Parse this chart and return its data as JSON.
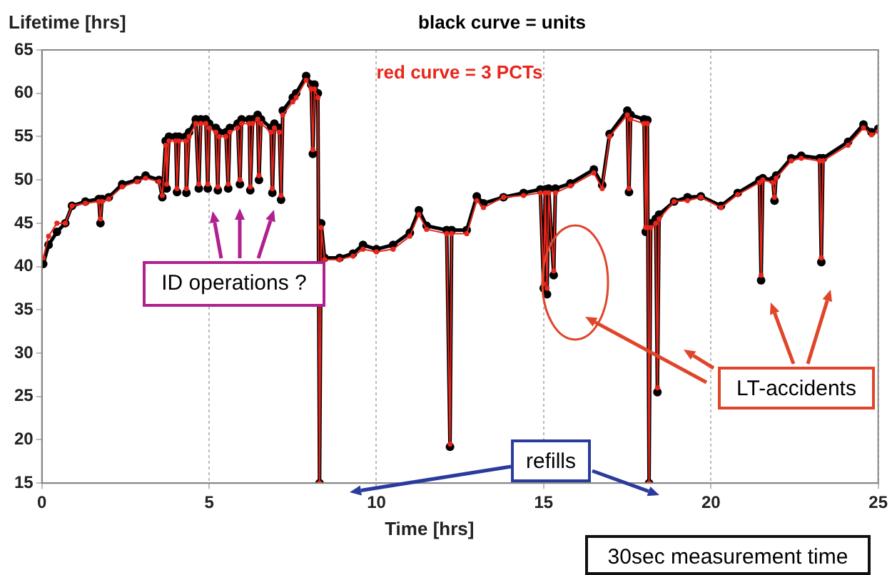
{
  "chart_data": {
    "type": "line",
    "xlabel": "Time [hrs]",
    "ylabel": "Lifetime [hrs]",
    "x": [
      0.04,
      0.2,
      0.45,
      0.7,
      0.9,
      1.3,
      1.7,
      1.75,
      1.8,
      2.0,
      2.4,
      2.85,
      3.1,
      3.5,
      3.6,
      3.7,
      3.73,
      3.8,
      4.0,
      4.04,
      4.1,
      4.3,
      4.32,
      4.4,
      4.6,
      4.69,
      4.75,
      4.9,
      4.96,
      5.0,
      5.2,
      5.26,
      5.3,
      5.5,
      5.57,
      5.62,
      5.85,
      5.92,
      5.97,
      6.2,
      6.23,
      6.3,
      6.45,
      6.49,
      6.55,
      6.85,
      6.89,
      6.95,
      7.1,
      7.15,
      7.2,
      7.5,
      7.6,
      7.9,
      8.05,
      8.1,
      8.15,
      8.25,
      8.3,
      8.35,
      8.45,
      8.9,
      9.3,
      9.6,
      10.0,
      10.5,
      11.0,
      11.27,
      11.5,
      12.1,
      12.2,
      12.25,
      12.7,
      13.0,
      13.2,
      13.8,
      14.4,
      14.9,
      15.0,
      15.05,
      15.1,
      15.15,
      15.3,
      15.35,
      15.8,
      16.5,
      16.75,
      16.97,
      17.5,
      17.55,
      17.6,
      18.0,
      18.05,
      18.1,
      18.15,
      18.2,
      18.35,
      18.4,
      18.45,
      18.9,
      19.3,
      19.7,
      20.3,
      20.8,
      21.45,
      21.5,
      21.55,
      21.85,
      21.9,
      21.95,
      22.4,
      22.7,
      23.25,
      23.3,
      23.35,
      24.1,
      24.56,
      24.8,
      25.0
    ],
    "series": [
      {
        "name": "black curve = units",
        "color": "#000000",
        "values": [
          40.3,
          42.5,
          44,
          45,
          47,
          47.5,
          47.8,
          45,
          47.8,
          48,
          49.5,
          50,
          50.5,
          50,
          48,
          54.5,
          49,
          55,
          55,
          48.6,
          55,
          55,
          48.5,
          55.5,
          57,
          49,
          57,
          57,
          49,
          56.5,
          56,
          48.8,
          55.5,
          55.5,
          49,
          56,
          56.5,
          49.5,
          57,
          57,
          48.8,
          57,
          57.5,
          50,
          57,
          56,
          48.5,
          56.5,
          56,
          47.7,
          58,
          59.5,
          60,
          62,
          61,
          53,
          61,
          60,
          15,
          45,
          41,
          41,
          41.5,
          42.5,
          42,
          42.5,
          43.9,
          46.5,
          44.7,
          44.2,
          19.2,
          44.2,
          44.2,
          48.1,
          47.3,
          48,
          48.5,
          48.9,
          37.5,
          48.9,
          36.8,
          49,
          39,
          49,
          49.6,
          51.2,
          49.4,
          55.3,
          58,
          48.6,
          57.5,
          57,
          44,
          56.9,
          15,
          45,
          45.5,
          25.5,
          46,
          47.5,
          48,
          48.1,
          47,
          48.5,
          50,
          38.4,
          50.2,
          50,
          47.6,
          50.5,
          52.5,
          52.8,
          52.5,
          40.5,
          52.5,
          54.4,
          56.4,
          55.5,
          55.9
        ]
      },
      {
        "name": "red curve = 3 PCTs",
        "color": "#e8261c",
        "values": [
          41,
          43.5,
          45,
          45,
          47,
          47.3,
          47.5,
          45.5,
          47.5,
          47.8,
          49.2,
          49.8,
          50.2,
          49.8,
          48.2,
          54,
          49.5,
          54.5,
          54.5,
          49,
          54.5,
          54.5,
          49,
          55,
          56.5,
          49.5,
          56.5,
          56.5,
          49.5,
          56,
          55.5,
          49.2,
          55,
          55,
          49.5,
          55.5,
          56,
          50,
          56.5,
          56.5,
          49.2,
          56.5,
          57,
          50.5,
          56.5,
          55.5,
          49,
          56,
          55.5,
          48.2,
          57.5,
          59,
          59.5,
          61.5,
          60.5,
          53.5,
          60.5,
          59.5,
          15,
          44.5,
          40.8,
          40.8,
          41.2,
          42,
          41.7,
          42,
          43.5,
          46,
          44.3,
          43.8,
          19.5,
          43.8,
          43.8,
          47.6,
          46.8,
          48,
          48.2,
          48.5,
          38,
          48.5,
          37.5,
          48.5,
          39.5,
          48.5,
          49.3,
          50.8,
          49,
          55,
          57.5,
          49,
          57,
          56.5,
          44.5,
          56.5,
          15,
          44.5,
          45,
          26,
          45.5,
          47.5,
          47.6,
          48,
          46.8,
          48.3,
          49.7,
          39,
          50,
          49.7,
          48,
          50.2,
          52.2,
          52.5,
          52.2,
          41,
          52.2,
          54,
          56,
          55.2,
          55.6
        ]
      }
    ],
    "xlim": [
      0,
      25
    ],
    "xticks": [
      0,
      5,
      10,
      15,
      20,
      25
    ],
    "ylim": [
      15,
      65
    ],
    "yticks": [
      15,
      20,
      25,
      30,
      35,
      40,
      45,
      50,
      55,
      60,
      65
    ],
    "grid": "x",
    "legend": "top",
    "marker": "circle",
    "line_style": "solid",
    "annotations": [
      "ID operations ?",
      "refills",
      "LT-accidents",
      "30sec measurement time"
    ]
  }
}
